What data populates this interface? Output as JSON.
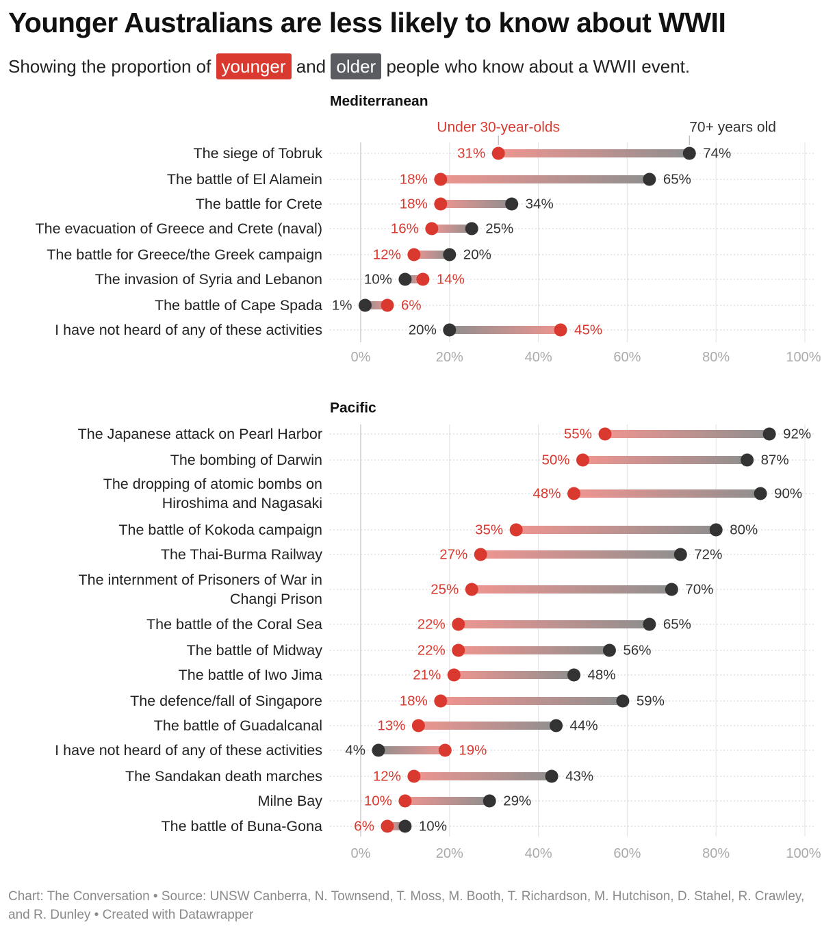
{
  "title": "Younger Australians are less likely to know about WWII",
  "subtitle": {
    "before": "Showing the proportion of",
    "younger": "younger",
    "and": "and",
    "older": "older",
    "after": "people who know about a WWII event."
  },
  "colors": {
    "younger": "#d9392f",
    "older": "#333333",
    "axis": "#aaaaaa"
  },
  "legend": {
    "younger": "Under 30-year-olds",
    "older": "70+ years old"
  },
  "footer": "Chart: The Conversation • Source: UNSW Canberra, N. Townsend, T. Moss, M. Booth, T. Richardson, M. Hutchison, D. Stahel, R. Crawley, and R. Dunley • Created with Datawrapper",
  "chart_data": [
    {
      "type": "dot-range",
      "title": "Mediterranean",
      "xlim": [
        0,
        100
      ],
      "ticks": [
        "0%",
        "20%",
        "40%",
        "60%",
        "80%",
        "100%"
      ],
      "categories": [
        [
          "The siege of Tobruk"
        ],
        [
          "The battle of El Alamein"
        ],
        [
          "The battle for Crete"
        ],
        [
          "The evacuation of Greece and Crete (naval)"
        ],
        [
          "The battle for Greece/the Greek campaign"
        ],
        [
          "The invasion of Syria and Lebanon"
        ],
        [
          "The battle of Cape Spada"
        ],
        [
          "I have not heard of any of these activities"
        ]
      ],
      "series": [
        {
          "name": "Under 30-year-olds",
          "values": [
            31,
            18,
            18,
            16,
            12,
            14,
            6,
            45
          ]
        },
        {
          "name": "70+ years old",
          "values": [
            74,
            65,
            34,
            25,
            20,
            10,
            1,
            20
          ]
        }
      ]
    },
    {
      "type": "dot-range",
      "title": "Pacific",
      "xlim": [
        0,
        100
      ],
      "ticks": [
        "0%",
        "20%",
        "40%",
        "60%",
        "80%",
        "100%"
      ],
      "categories": [
        [
          "The Japanese attack on Pearl Harbor"
        ],
        [
          "The bombing of Darwin"
        ],
        [
          "The dropping of atomic bombs on",
          "Hiroshima and Nagasaki"
        ],
        [
          "The battle of Kokoda campaign"
        ],
        [
          "The Thai-Burma Railway"
        ],
        [
          "The internment of Prisoners of War in",
          "Changi Prison"
        ],
        [
          "The battle of the Coral Sea"
        ],
        [
          "The battle of Midway"
        ],
        [
          "The battle of Iwo Jima"
        ],
        [
          "The defence/fall of Singapore"
        ],
        [
          "The battle of Guadalcanal"
        ],
        [
          "I have not heard of any of these activities"
        ],
        [
          "The Sandakan death marches"
        ],
        [
          "Milne Bay"
        ],
        [
          "The battle of Buna-Gona"
        ]
      ],
      "series": [
        {
          "name": "Under 30-year-olds",
          "values": [
            55,
            50,
            48,
            35,
            27,
            25,
            22,
            22,
            21,
            18,
            13,
            19,
            12,
            10,
            6
          ]
        },
        {
          "name": "70+ years old",
          "values": [
            92,
            87,
            90,
            80,
            72,
            70,
            65,
            56,
            48,
            59,
            44,
            4,
            43,
            29,
            10
          ]
        }
      ]
    }
  ]
}
